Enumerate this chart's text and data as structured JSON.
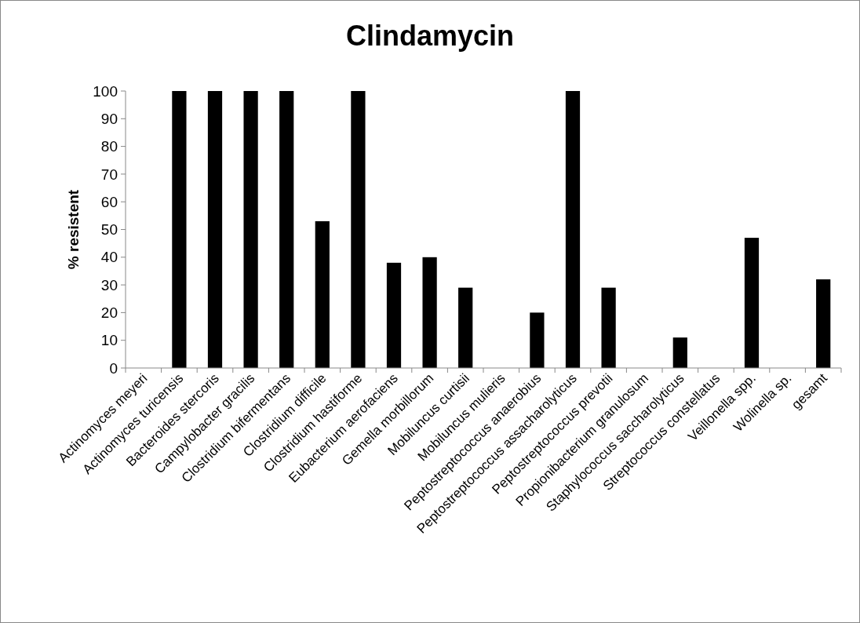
{
  "chart_data": {
    "type": "bar",
    "title": "Clindamycin",
    "ylabel": "% resistent",
    "categories": [
      "Actinomyces meyeri",
      "Actinomyces turicensis",
      "Bacteroides stercoris",
      "Campylobacter gracilis",
      "Clostridium bifermentans",
      "Clostridium difficile",
      "Clostridium hastiforme",
      "Eubacterium aerofaciens",
      "Gemella morbillorum",
      "Mobiluncus curtisii",
      "Mobiluncus mulieris",
      "Peptostreptococcus anaerobius",
      "Peptostreptococcus assacharolyticus",
      "Peptostreptococcus prevotii",
      "Propionibacterium granulosum",
      "Staphylococcus saccharolyticus",
      "Streptococcus constellatus",
      "Veillonella spp.",
      "Wolinella sp.",
      "gesamt"
    ],
    "values": [
      0,
      100,
      100,
      100,
      100,
      53,
      100,
      38,
      40,
      29,
      0,
      20,
      100,
      29,
      0,
      11,
      0,
      47,
      0,
      32
    ],
    "color": "#000000",
    "ylim": [
      0,
      100
    ],
    "yticks": [
      0,
      10,
      20,
      30,
      40,
      50,
      60,
      70,
      80,
      90,
      100
    ],
    "grid": false
  }
}
